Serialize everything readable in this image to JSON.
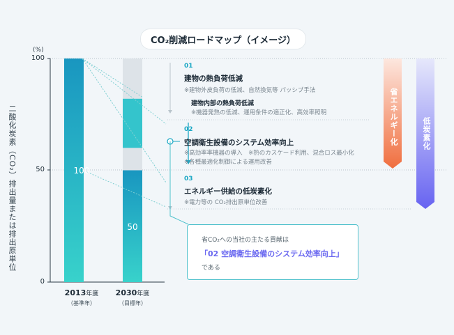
{
  "chart_data": {
    "type": "bar",
    "title": "CO₂削減ロードマップ（イメージ）",
    "ylabel": "二酸化炭素（CO₂）排出量または排出原単位",
    "yunit": "(%)",
    "ylim": [
      0,
      100
    ],
    "yticks": [
      "0",
      "50",
      "100"
    ],
    "categories": [
      {
        "year": "2013",
        "suffix": "年度",
        "sub": "（基準年）"
      },
      {
        "year": "2030",
        "suffix": "年度",
        "sub": "（目標年）"
      }
    ],
    "values": [
      100,
      50
    ],
    "value_labels": [
      "100",
      "50"
    ],
    "segments_2030": [
      {
        "from": 82,
        "to": 100,
        "color": "#dde3e8"
      },
      {
        "from": 60,
        "to": 82,
        "color": "#34c4cc"
      },
      {
        "from": 50,
        "to": 60,
        "color": "#dde3e8"
      }
    ],
    "colors": {
      "bar_top": "#1aa0c2",
      "bar_bottom": "#37d0cb",
      "grey": "#dde3e8",
      "accent": "#1aa7c4"
    }
  },
  "sections": [
    {
      "no": "01",
      "title": "建物の熱負荷低減",
      "note": "※建物外皮負荷の低減、自然換気等 パッシブ手法",
      "sub_title": "建物内部の熱負荷低減",
      "sub_note": "※機器発熱の低減、運用条件の適正化、高効率照明"
    },
    {
      "no": "02",
      "title": "空調衛生設備のシステム効率向上",
      "note": "※高効率率機器の導入　※熱のカスケード利用、混合ロス最小化",
      "note2": "※各種最適化制御による運用改善"
    },
    {
      "no": "03",
      "title": "エネルギー供給の低炭素化",
      "note": "※電力等の CO₂排出原単位改善"
    }
  ],
  "arrows": {
    "energy_saving": {
      "label": "省エネルギー化",
      "color": "#f07a4f"
    },
    "low_carbon": {
      "label": "低炭素化",
      "color": "#6f6cf2"
    }
  },
  "callout": {
    "line1": "省CO₂への当社の主たる貢献は",
    "line2": "「02 空調衛生設備のシステム効率向上」",
    "line3": "である"
  }
}
